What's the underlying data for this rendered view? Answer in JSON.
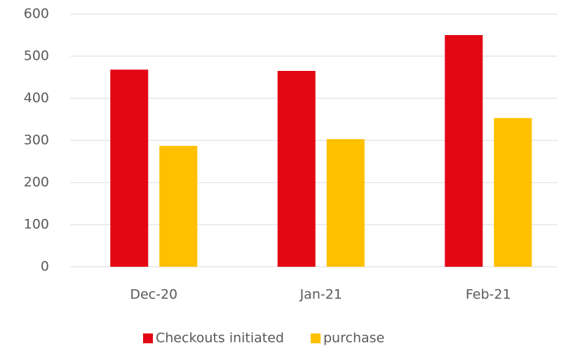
{
  "chart_data": {
    "type": "bar",
    "categories": [
      "Dec-20",
      "Jan-21",
      "Feb-21"
    ],
    "series": [
      {
        "name": "Checkouts initiated",
        "color": "#e30613",
        "values": [
          468,
          465,
          550
        ]
      },
      {
        "name": "purchase",
        "color": "#ffc000",
        "values": [
          287,
          303,
          353
        ]
      }
    ],
    "ylim": [
      0,
      600
    ],
    "yticks": [
      0,
      100,
      200,
      300,
      400,
      500,
      600
    ],
    "grid": true,
    "legend": "bottom"
  }
}
